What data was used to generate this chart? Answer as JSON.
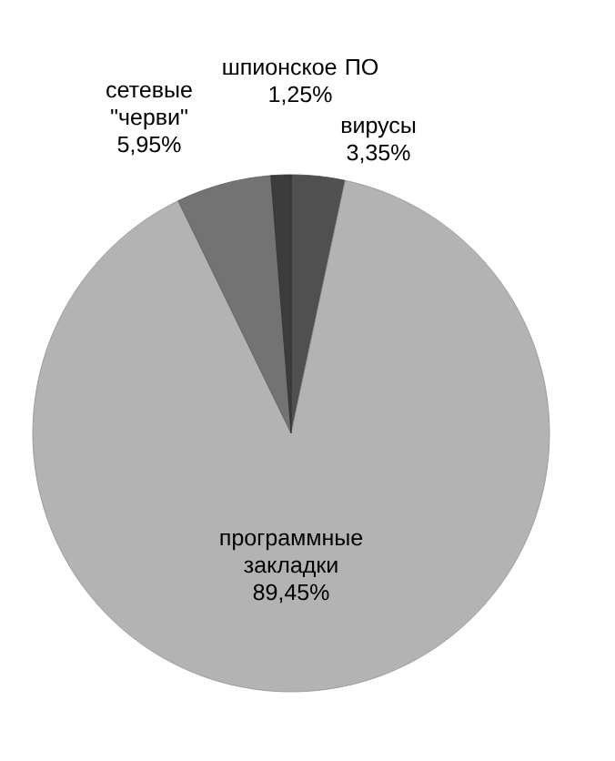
{
  "chart_data": {
    "type": "pie",
    "categories": [
      "вирусы",
      "программные закладки",
      "сетевые \"черви\"",
      "шпионское ПО"
    ],
    "values": [
      3.35,
      89.45,
      5.95,
      1.25
    ],
    "colors": [
      "#505050",
      "#b3b3b3",
      "#737373",
      "#3c3c3c"
    ],
    "value_labels": [
      "3,35%",
      "89,45%",
      "5,95%",
      "1,25%"
    ]
  }
}
